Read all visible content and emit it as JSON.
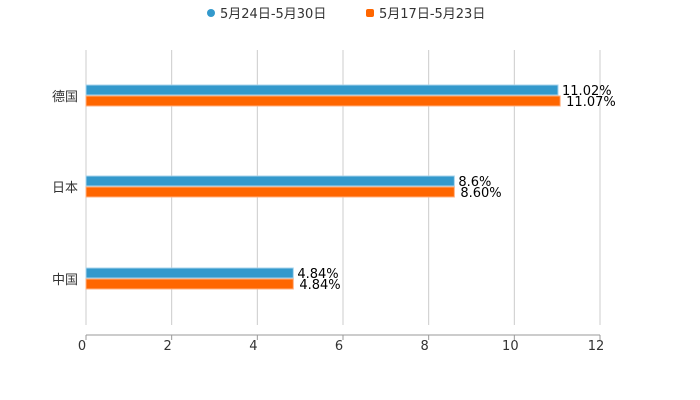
{
  "chart_data": {
    "type": "bar",
    "orientation": "horizontal",
    "title": "",
    "xlabel": "",
    "ylabel": "",
    "categories": [
      "德国",
      "日本",
      "中国"
    ],
    "series": [
      {
        "name": "5月24日-5月30日",
        "color": "#3399cc",
        "values": [
          11.02,
          8.6,
          4.84
        ],
        "labels": [
          "11.02%",
          "8.6%",
          "4.84%"
        ]
      },
      {
        "name": "5月17日-5月23日",
        "color": "#ff6600",
        "values": [
          11.07,
          8.6,
          4.84
        ],
        "labels": [
          "11.07%",
          "8.60%",
          "4.84%"
        ]
      }
    ],
    "xlim": [
      0,
      12
    ],
    "xticks": [
      "0",
      "2",
      "4",
      "6",
      "8",
      "10",
      "12"
    ],
    "grid": true,
    "legend": "top-center"
  }
}
